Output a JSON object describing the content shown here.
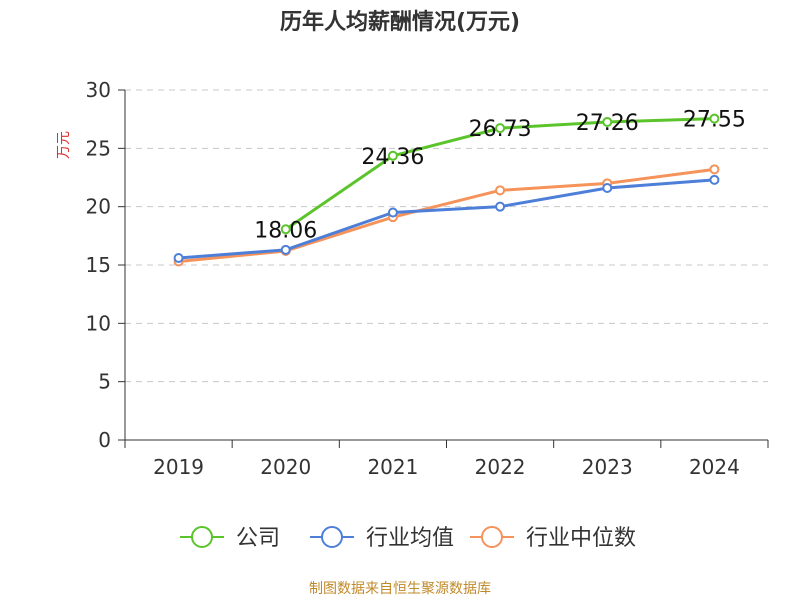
{
  "chart_data": {
    "type": "line",
    "title": "历年人均薪酬情况(万元)",
    "ylabel": "万元",
    "xlabel": "",
    "categories": [
      "2019",
      "2020",
      "2021",
      "2022",
      "2023",
      "2024"
    ],
    "ylim": [
      0,
      30
    ],
    "yticks": [
      0,
      5,
      10,
      15,
      20,
      25,
      30
    ],
    "grid": true,
    "legend_position": "bottom",
    "series": [
      {
        "name": "公司",
        "color": "#5bc42b",
        "values": [
          null,
          18.06,
          24.36,
          26.73,
          27.26,
          27.55
        ],
        "labels": [
          "",
          "18.06",
          "24.36",
          "26.73",
          "27.26",
          "27.55"
        ]
      },
      {
        "name": "行业均值",
        "color": "#4e7fd8",
        "values": [
          15.6,
          16.3,
          19.5,
          20.0,
          21.6,
          22.3
        ],
        "labels": []
      },
      {
        "name": "行业中位数",
        "color": "#f5935a",
        "values": [
          15.3,
          16.2,
          19.1,
          21.4,
          22.0,
          23.2
        ],
        "labels": []
      }
    ]
  },
  "footer": "制图数据来自恒生聚源数据库"
}
